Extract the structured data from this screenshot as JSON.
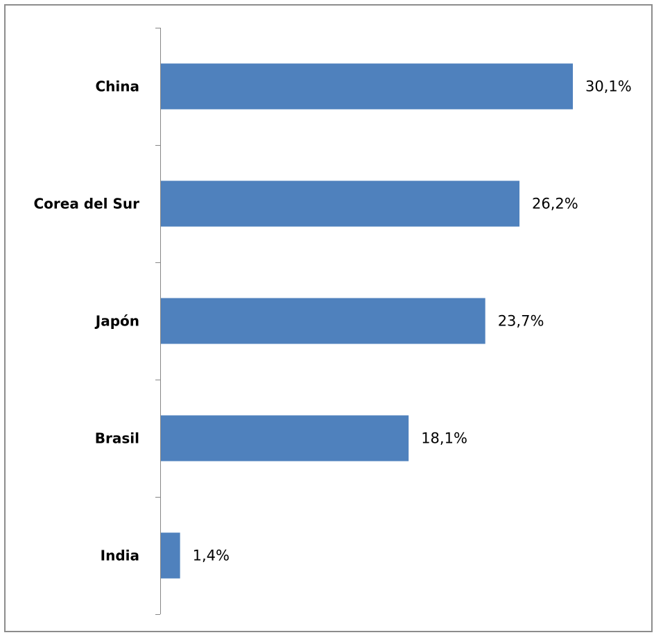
{
  "chart_data": {
    "type": "bar",
    "orientation": "horizontal",
    "categories": [
      "China",
      "Corea del Sur",
      "Japón",
      "Brasil",
      "India"
    ],
    "values": [
      30.1,
      26.2,
      23.7,
      18.1,
      1.4
    ],
    "data_labels": [
      "30,1%",
      "26,2%",
      "23,7%",
      "18,1%",
      "1,4%"
    ],
    "unit": "%",
    "xlim": [
      0,
      30.1
    ],
    "grid": false,
    "legend": "none",
    "bar_color": "#4f81bd"
  }
}
